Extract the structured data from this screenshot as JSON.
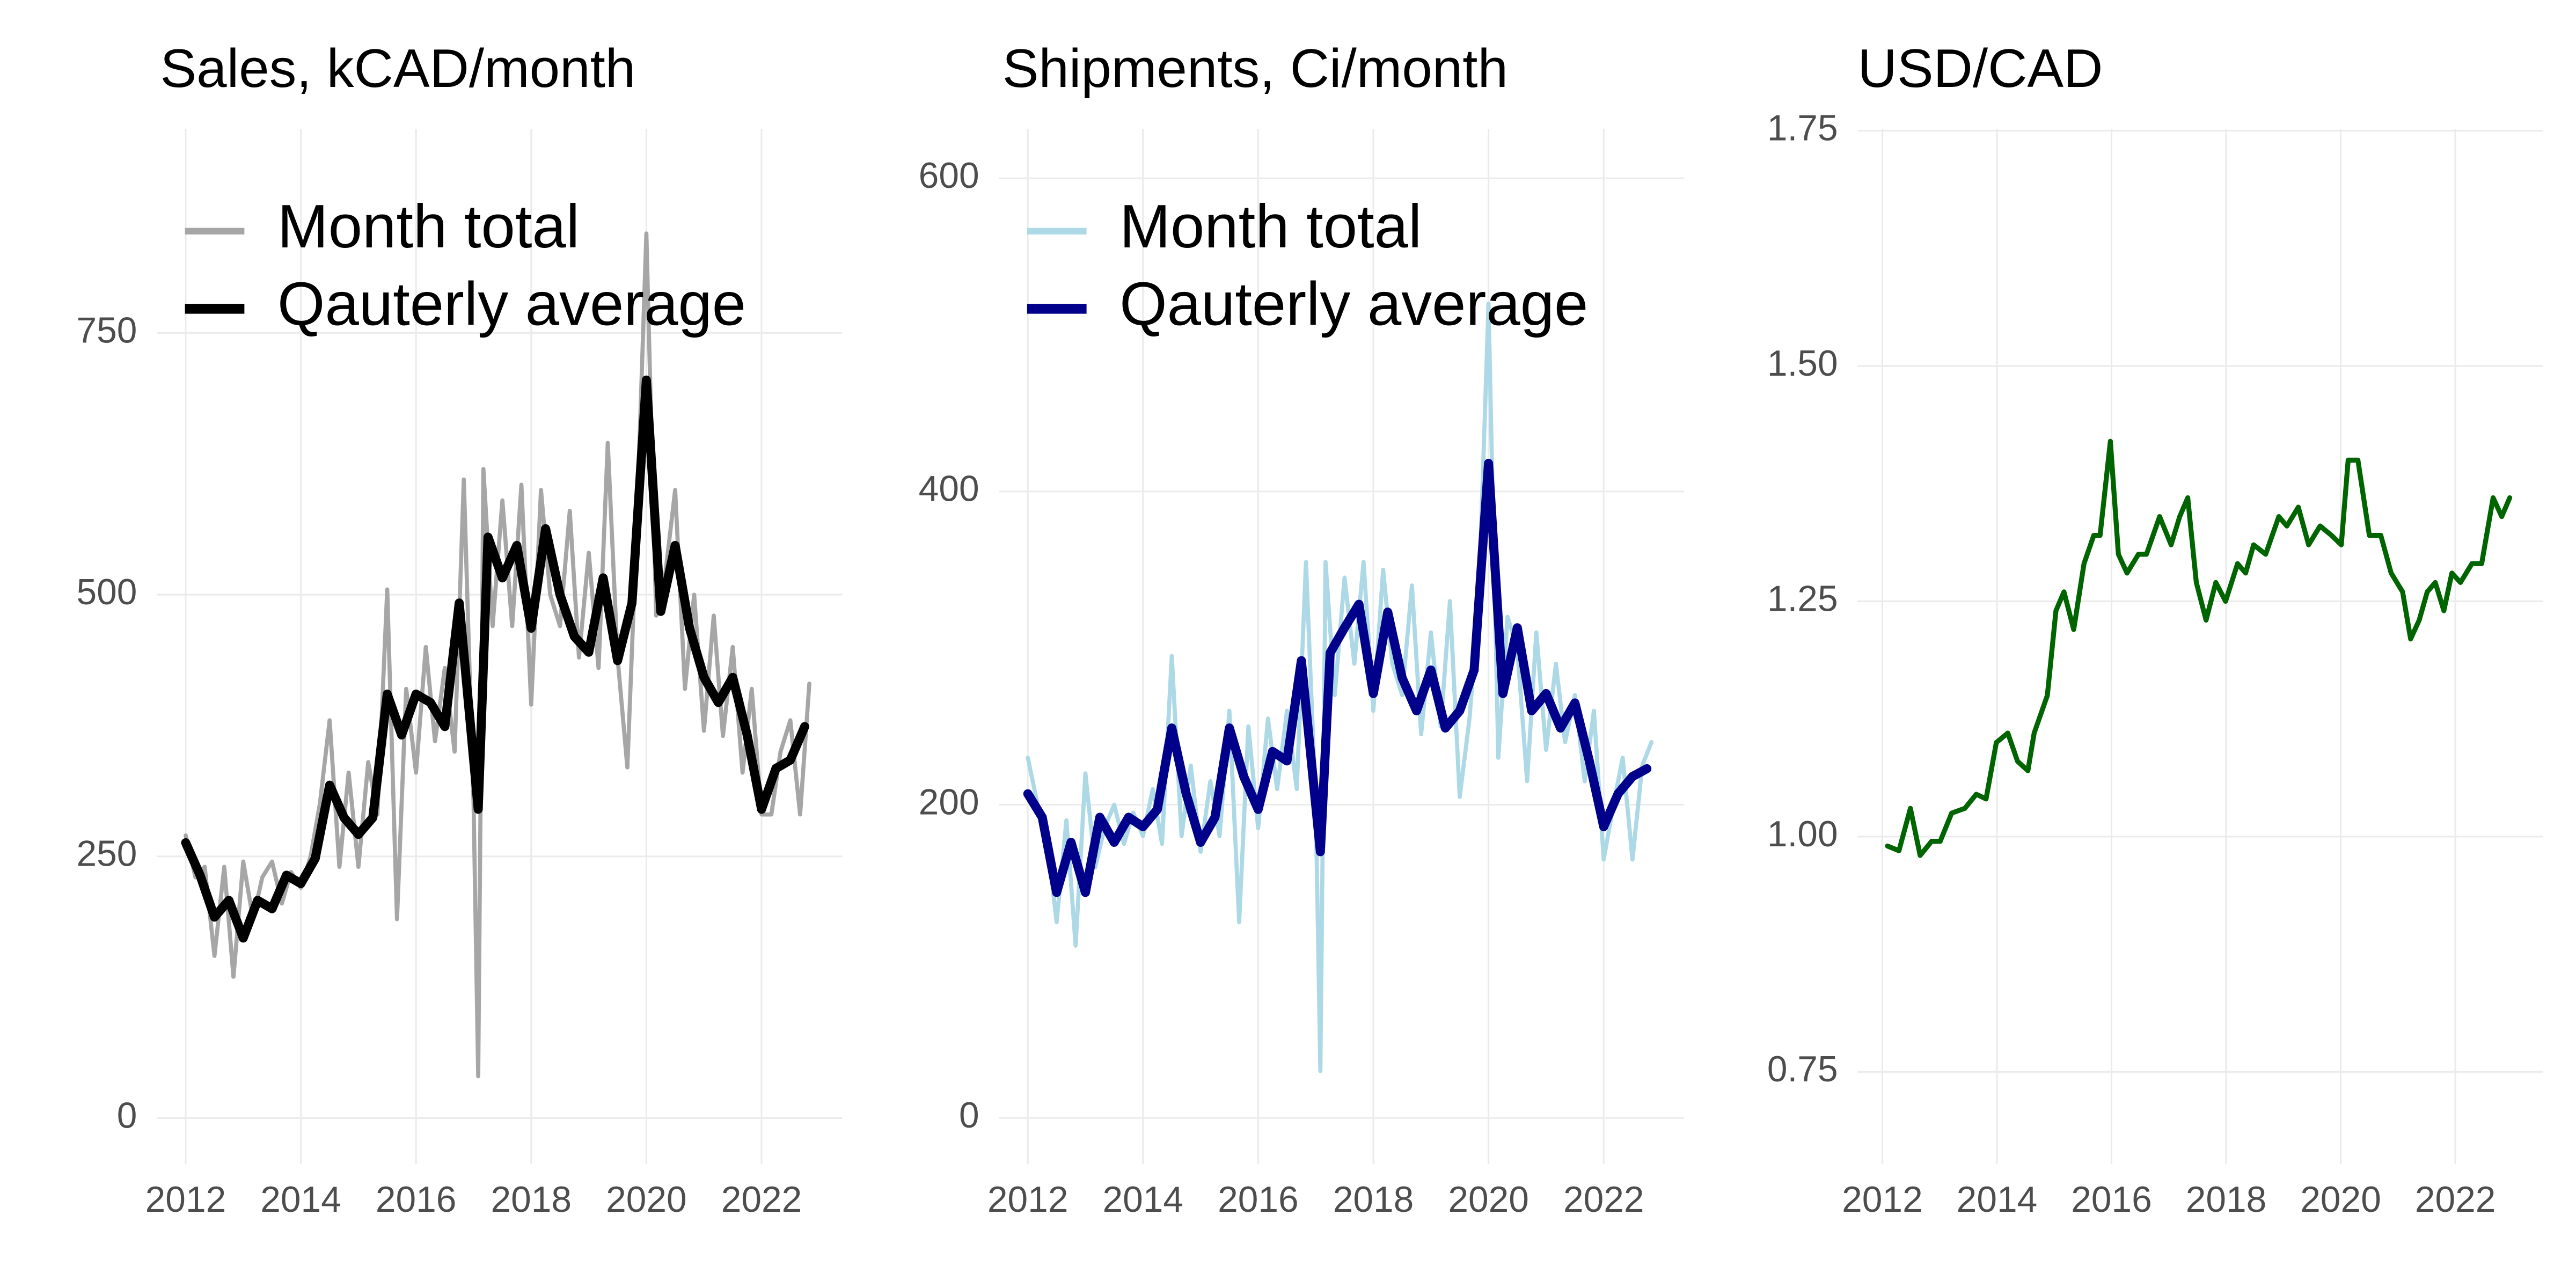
{
  "chart_data": [
    {
      "type": "line",
      "title": "Sales, kCAD/month",
      "xlim": [
        2011.5,
        2023.4
      ],
      "xticks": [
        2012,
        2014,
        2016,
        2018,
        2020,
        2022
      ],
      "ylim": [
        -44,
        945
      ],
      "yticks": [
        0,
        250,
        500,
        750
      ],
      "grid": true,
      "legend": "top-left",
      "series": [
        {
          "name": "Month total",
          "color": "#a6a6a6",
          "x": [
            2012.0,
            2012.17,
            2012.33,
            2012.5,
            2012.67,
            2012.83,
            2013.0,
            2013.17,
            2013.33,
            2013.5,
            2013.67,
            2013.83,
            2014.0,
            2014.17,
            2014.33,
            2014.5,
            2014.67,
            2014.83,
            2015.0,
            2015.17,
            2015.33,
            2015.5,
            2015.67,
            2015.83,
            2016.0,
            2016.17,
            2016.33,
            2016.5,
            2016.67,
            2016.83,
            2017.0,
            2017.08,
            2017.17,
            2017.33,
            2017.5,
            2017.67,
            2017.83,
            2018.0,
            2018.17,
            2018.33,
            2018.5,
            2018.67,
            2018.83,
            2019.0,
            2019.17,
            2019.33,
            2019.5,
            2019.67,
            2019.83,
            2020.0,
            2020.17,
            2020.33,
            2020.5,
            2020.67,
            2020.83,
            2021.0,
            2021.17,
            2021.33,
            2021.5,
            2021.67,
            2021.83,
            2022.0,
            2022.17,
            2022.33,
            2022.5,
            2022.67,
            2022.83
          ],
          "values": [
            270,
            230,
            240,
            155,
            240,
            135,
            245,
            190,
            230,
            245,
            205,
            235,
            220,
            250,
            300,
            380,
            240,
            330,
            240,
            340,
            290,
            505,
            190,
            410,
            330,
            450,
            360,
            430,
            350,
            610,
            300,
            40,
            620,
            470,
            590,
            470,
            605,
            395,
            600,
            500,
            470,
            580,
            440,
            540,
            430,
            645,
            440,
            335,
            560,
            845,
            480,
            520,
            600,
            410,
            500,
            370,
            480,
            365,
            450,
            330,
            410,
            290,
            290,
            350,
            380,
            290,
            415
          ]
        },
        {
          "name": "Qauterly average",
          "color": "#000000",
          "x": [
            2012.0,
            2012.25,
            2012.5,
            2012.75,
            2013.0,
            2013.25,
            2013.5,
            2013.75,
            2014.0,
            2014.25,
            2014.5,
            2014.75,
            2015.0,
            2015.25,
            2015.5,
            2015.75,
            2016.0,
            2016.25,
            2016.5,
            2016.75,
            2017.08,
            2017.25,
            2017.5,
            2017.75,
            2018.0,
            2018.25,
            2018.5,
            2018.75,
            2019.0,
            2019.25,
            2019.5,
            2019.75,
            2020.0,
            2020.25,
            2020.5,
            2020.75,
            2021.0,
            2021.25,
            2021.5,
            2021.75,
            2022.0,
            2022.25,
            2022.5,
            2022.75
          ],
          "values": [
            263,
            232,
            192,
            208,
            172,
            208,
            200,
            232,
            224,
            248,
            318,
            287,
            271,
            287,
            405,
            366,
            405,
            397,
            374,
            492,
            295,
            555,
            516,
            547,
            468,
            563,
            500,
            460,
            445,
            516,
            437,
            492,
            705,
            484,
            547,
            468,
            421,
            397,
            421,
            366,
            295,
            334,
            342,
            374
          ]
        }
      ]
    },
    {
      "type": "line",
      "title": "Shipments, Ci/month",
      "xlim": [
        2011.5,
        2023.4
      ],
      "xticks": [
        2012,
        2014,
        2016,
        2018,
        2020,
        2022
      ],
      "ylim": [
        -29.5,
        631.6
      ],
      "yticks": [
        0,
        200,
        400,
        600
      ],
      "grid": true,
      "legend": "top-left",
      "series": [
        {
          "name": "Month total",
          "color": "#add8e6",
          "x": [
            2012.0,
            2012.17,
            2012.33,
            2012.5,
            2012.67,
            2012.83,
            2013.0,
            2013.17,
            2013.33,
            2013.5,
            2013.67,
            2013.83,
            2014.0,
            2014.17,
            2014.33,
            2014.5,
            2014.67,
            2014.83,
            2015.0,
            2015.17,
            2015.33,
            2015.5,
            2015.67,
            2015.83,
            2016.0,
            2016.17,
            2016.33,
            2016.5,
            2016.67,
            2016.83,
            2017.0,
            2017.08,
            2017.17,
            2017.33,
            2017.5,
            2017.67,
            2017.83,
            2018.0,
            2018.17,
            2018.33,
            2018.5,
            2018.67,
            2018.83,
            2019.0,
            2019.17,
            2019.33,
            2019.5,
            2019.67,
            2019.83,
            2020.0,
            2020.17,
            2020.33,
            2020.5,
            2020.67,
            2020.83,
            2021.0,
            2021.17,
            2021.33,
            2021.5,
            2021.67,
            2021.83,
            2022.0,
            2022.17,
            2022.33,
            2022.5,
            2022.67,
            2022.83
          ],
          "values": [
            230,
            200,
            180,
            125,
            190,
            110,
            220,
            160,
            185,
            200,
            175,
            195,
            180,
            210,
            175,
            295,
            180,
            225,
            170,
            215,
            180,
            260,
            125,
            250,
            185,
            255,
            210,
            260,
            210,
            355,
            200,
            30,
            355,
            270,
            345,
            290,
            355,
            260,
            350,
            290,
            270,
            340,
            245,
            310,
            250,
            330,
            205,
            255,
            330,
            520,
            230,
            320,
            300,
            215,
            310,
            235,
            290,
            240,
            270,
            215,
            260,
            165,
            200,
            230,
            165,
            225,
            240
          ]
        },
        {
          "name": "Qauterly average",
          "color": "#00008b",
          "x": [
            2012.0,
            2012.25,
            2012.5,
            2012.75,
            2013.0,
            2013.25,
            2013.5,
            2013.75,
            2014.0,
            2014.25,
            2014.5,
            2014.75,
            2015.0,
            2015.25,
            2015.5,
            2015.75,
            2016.0,
            2016.25,
            2016.5,
            2016.75,
            2017.08,
            2017.25,
            2017.5,
            2017.75,
            2018.0,
            2018.25,
            2018.5,
            2018.75,
            2019.0,
            2019.25,
            2019.5,
            2019.75,
            2020.0,
            2020.25,
            2020.5,
            2020.75,
            2021.0,
            2021.25,
            2021.5,
            2021.75,
            2022.0,
            2022.25,
            2022.5,
            2022.75
          ],
          "values": [
            207,
            192,
            144,
            176,
            144,
            192,
            176,
            192,
            186,
            197,
            249,
            207,
            176,
            192,
            249,
            218,
            197,
            234,
            228,
            292,
            170,
            297,
            313,
            328,
            271,
            323,
            281,
            260,
            286,
            249,
            260,
            286,
            418,
            271,
            313,
            260,
            271,
            249,
            265,
            228,
            186,
            207,
            218,
            223
          ]
        }
      ]
    },
    {
      "type": "line",
      "title": "USD/CAD",
      "xlim": [
        2011.57,
        2023.53
      ],
      "xticks": [
        2012,
        2014,
        2016,
        2018,
        2020,
        2022
      ],
      "ylim": [
        0.652,
        1.752
      ],
      "yticks": [
        0.75,
        {
          "value": 1,
          "label": "1.00"
        },
        1.25,
        {
          "value": 1.5,
          "label": "1.50"
        },
        1.75
      ],
      "grid": true,
      "color": "#006400",
      "x": [
        2012.09,
        2012.29,
        2012.49,
        2012.66,
        2012.86,
        2013.01,
        2013.21,
        2013.44,
        2013.64,
        2013.81,
        2013.99,
        2014.19,
        2014.36,
        2014.54,
        2014.65,
        2014.88,
        2015.03,
        2015.17,
        2015.34,
        2015.52,
        2015.69,
        2015.8,
        2015.98,
        2016.12,
        2016.27,
        2016.47,
        2016.61,
        2016.84,
        2017.04,
        2017.19,
        2017.33,
        2017.48,
        2017.65,
        2017.82,
        2017.99,
        2018.2,
        2018.34,
        2018.48,
        2018.69,
        2018.92,
        2019.06,
        2019.26,
        2019.44,
        2019.64,
        2019.84,
        2020.01,
        2020.13,
        2020.3,
        2020.5,
        2020.7,
        2020.88,
        2021.08,
        2021.22,
        2021.37,
        2021.51,
        2021.65,
        2021.8,
        2021.94,
        2022.09,
        2022.29,
        2022.46,
        2022.66,
        2022.81,
        2022.95
      ],
      "values": [
        0.99,
        0.985,
        1.03,
        0.98,
        0.995,
        0.995,
        1.025,
        1.03,
        1.045,
        1.04,
        1.1,
        1.11,
        1.08,
        1.07,
        1.11,
        1.15,
        1.24,
        1.26,
        1.22,
        1.29,
        1.32,
        1.32,
        1.42,
        1.3,
        1.28,
        1.3,
        1.3,
        1.34,
        1.31,
        1.34,
        1.36,
        1.27,
        1.23,
        1.27,
        1.25,
        1.29,
        1.28,
        1.31,
        1.3,
        1.34,
        1.33,
        1.35,
        1.31,
        1.33,
        1.32,
        1.31,
        1.4,
        1.4,
        1.32,
        1.32,
        1.28,
        1.26,
        1.21,
        1.23,
        1.26,
        1.27,
        1.24,
        1.28,
        1.27,
        1.29,
        1.29,
        1.36,
        1.34,
        1.36
      ]
    }
  ]
}
